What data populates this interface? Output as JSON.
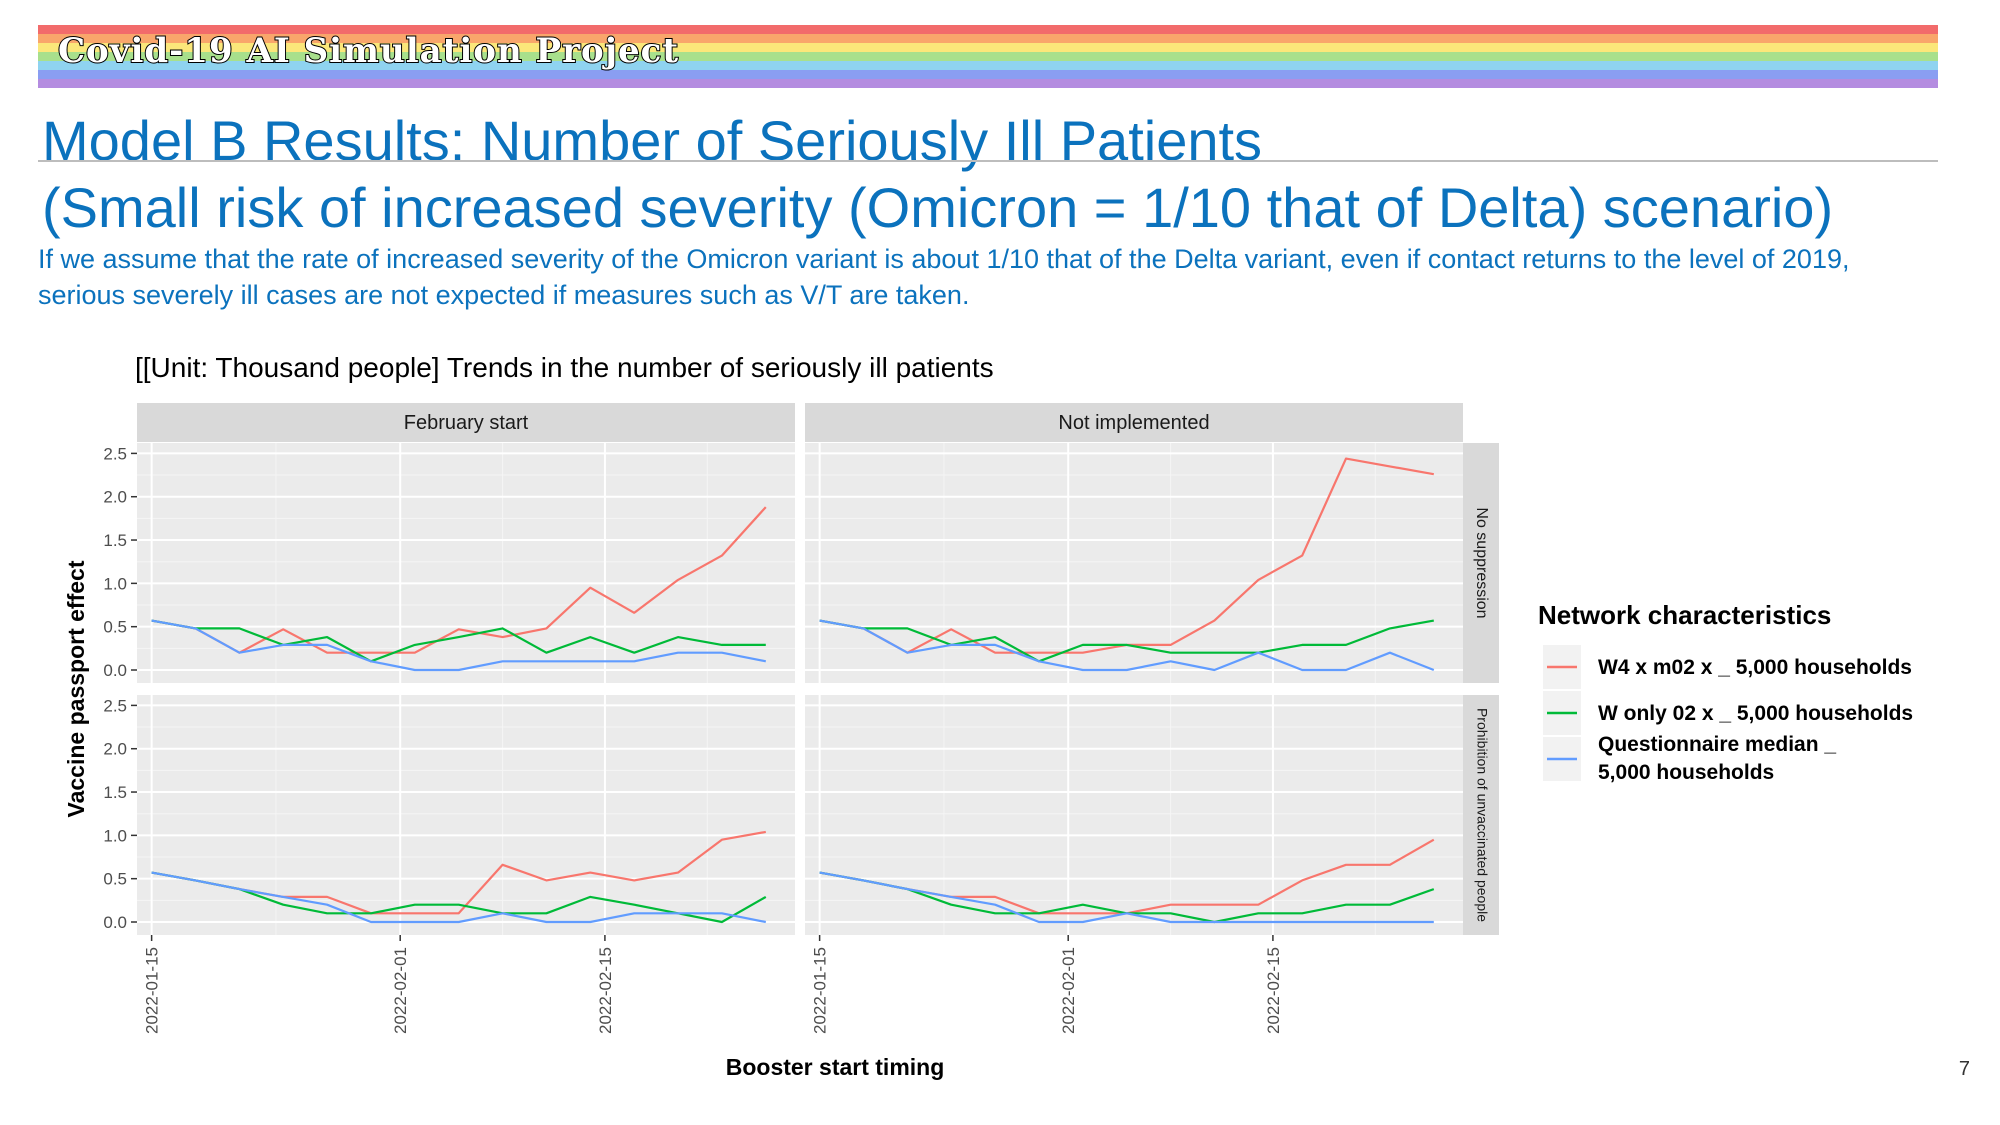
{
  "banner": {
    "text": "Covid-19 AI Simulation Project",
    "colors": [
      "#f26b6b",
      "#f9a66b",
      "#fbe77a",
      "#a8e08c",
      "#8fd3f0",
      "#8a9ef2",
      "#b48ce0"
    ]
  },
  "slide": {
    "title_line1": "Model B Results: Number of Seriously Ill Patients",
    "title_line2": "(Small risk of increased severity (Omicron = 1/10 that of Delta) scenario)",
    "description": "If we assume that the rate of increased severity of the Omicron variant is about 1/10 that of the Delta variant, even if contact returns to the level of 2019, serious severely ill cases are not expected if measures such as V/T are taken.",
    "page_number": "7"
  },
  "chart_data": {
    "type": "line",
    "title": "[[Unit: Thousand people] Trends in the number of seriously ill patients",
    "xlabel": "Booster start timing",
    "ylabel": "Vaccine passport effect",
    "ylim": [
      0,
      2.5
    ],
    "y_ticks": [
      "0.0",
      "0.5",
      "1.0",
      "1.5",
      "2.0",
      "2.5"
    ],
    "x_ticks": [
      "2022-01-15",
      "2022-02-01",
      "2022-02-15"
    ],
    "x_dates": [
      "2022-01-15",
      "2022-01-18",
      "2022-01-21",
      "2022-01-24",
      "2022-01-27",
      "2022-01-30",
      "2022-02-02",
      "2022-02-05",
      "2022-02-08",
      "2022-02-11",
      "2022-02-14",
      "2022-02-17",
      "2022-02-20",
      "2022-02-23",
      "2022-02-26"
    ],
    "facet_columns": [
      "February start",
      "Not implemented"
    ],
    "facet_rows": [
      "No suppression",
      "Prohibition of unvaccinated people"
    ],
    "legend": {
      "title": "Network characteristics",
      "position": "right",
      "entries": [
        {
          "label_lines": [
            "W4 x m02 x _ 5,000 households"
          ],
          "color": "#f8766d"
        },
        {
          "label_lines": [
            "W only 02 x _ 5,000 households"
          ],
          "color": "#00ba38"
        },
        {
          "label_lines": [
            "Questionnaire median _",
            "5,000 households"
          ],
          "color": "#619cff"
        }
      ]
    },
    "panels": [
      {
        "col": 0,
        "row": 0,
        "series": [
          {
            "values": [
              0.57,
              0.48,
              0.2,
              0.47,
              0.2,
              0.2,
              0.2,
              0.47,
              0.38,
              0.48,
              0.95,
              0.66,
              1.04,
              1.32,
              1.88
            ]
          },
          {
            "values": [
              0.57,
              0.48,
              0.48,
              0.29,
              0.38,
              0.1,
              0.29,
              0.38,
              0.48,
              0.2,
              0.38,
              0.2,
              0.38,
              0.29,
              0.29
            ]
          },
          {
            "values": [
              0.57,
              0.48,
              0.2,
              0.29,
              0.29,
              0.1,
              0.0,
              0.0,
              0.1,
              0.1,
              0.1,
              0.1,
              0.2,
              0.2,
              0.1
            ]
          }
        ]
      },
      {
        "col": 1,
        "row": 0,
        "series": [
          {
            "values": [
              0.57,
              0.48,
              0.2,
              0.47,
              0.2,
              0.2,
              0.2,
              0.29,
              0.29,
              0.57,
              1.04,
              1.32,
              2.44,
              2.35,
              2.26
            ]
          },
          {
            "values": [
              0.57,
              0.48,
              0.48,
              0.29,
              0.38,
              0.1,
              0.29,
              0.29,
              0.2,
              0.2,
              0.2,
              0.29,
              0.29,
              0.48,
              0.57
            ]
          },
          {
            "values": [
              0.57,
              0.48,
              0.2,
              0.29,
              0.29,
              0.1,
              0.0,
              0.0,
              0.1,
              0.0,
              0.2,
              0.0,
              0.0,
              0.2,
              0.0
            ]
          }
        ]
      },
      {
        "col": 0,
        "row": 1,
        "series": [
          {
            "values": [
              0.57,
              0.48,
              0.38,
              0.29,
              0.29,
              0.1,
              0.1,
              0.1,
              0.66,
              0.48,
              0.57,
              0.48,
              0.57,
              0.95,
              1.04
            ]
          },
          {
            "values": [
              0.57,
              0.48,
              0.38,
              0.2,
              0.1,
              0.1,
              0.2,
              0.2,
              0.1,
              0.1,
              0.29,
              0.2,
              0.1,
              0.0,
              0.29
            ]
          },
          {
            "values": [
              0.57,
              0.48,
              0.38,
              0.29,
              0.2,
              0.0,
              0.0,
              0.0,
              0.1,
              0.0,
              0.0,
              0.1,
              0.1,
              0.1,
              0.0
            ]
          }
        ]
      },
      {
        "col": 1,
        "row": 1,
        "series": [
          {
            "values": [
              0.57,
              0.48,
              0.38,
              0.29,
              0.29,
              0.1,
              0.1,
              0.1,
              0.2,
              0.2,
              0.2,
              0.48,
              0.66,
              0.66,
              0.95
            ]
          },
          {
            "values": [
              0.57,
              0.48,
              0.38,
              0.2,
              0.1,
              0.1,
              0.2,
              0.1,
              0.1,
              0.0,
              0.1,
              0.1,
              0.2,
              0.2,
              0.38
            ]
          },
          {
            "values": [
              0.57,
              0.48,
              0.38,
              0.29,
              0.2,
              0.0,
              0.0,
              0.1,
              0.0,
              0.0,
              0.0,
              0.0,
              0.0,
              0.0,
              0.0
            ]
          }
        ]
      }
    ]
  }
}
